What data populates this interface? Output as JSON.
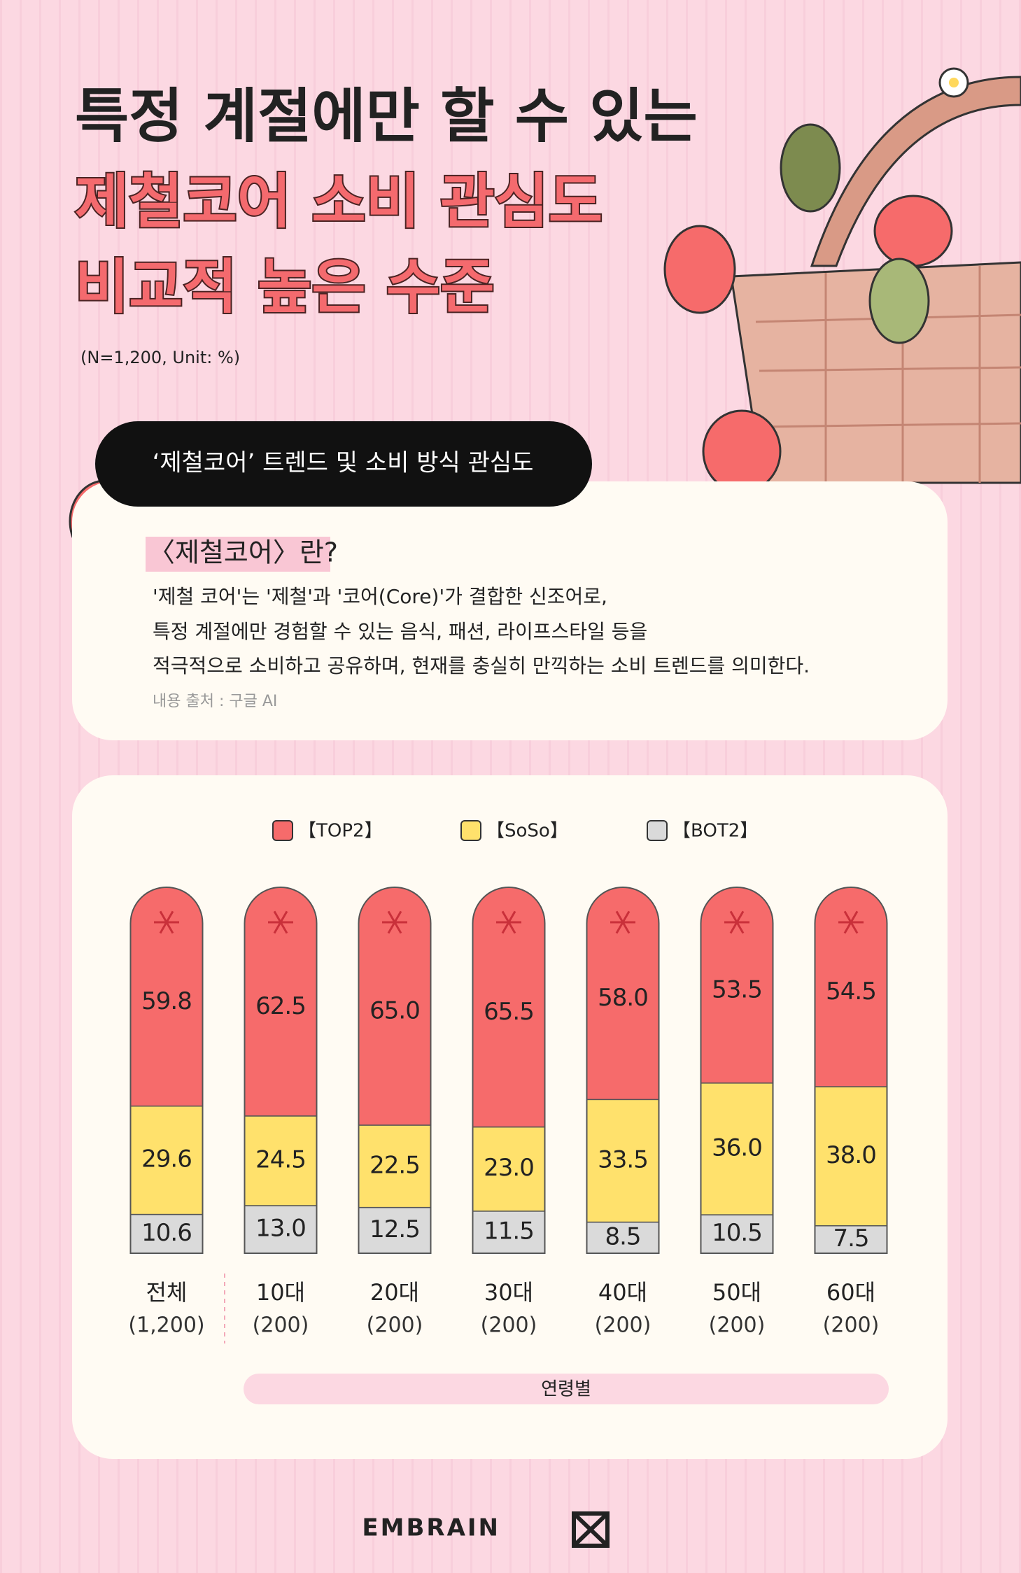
{
  "header": {
    "title_lines": [
      "특정 계절에만 할 수 있는",
      "제철코어 소비 관심도",
      "비교적 높은 수준"
    ],
    "note": "(N=1,200, Unit: %)"
  },
  "section": {
    "title": "‘제철코어’ 트렌드 및 소비 방식 관심도",
    "definition_title": "〈제철코어〉란?",
    "definition_lines": [
      "'제철 코어'는 '제철'과 '코어(Core)'가 결합한 신조어로,",
      "특정 계절에만 경험할 수 있는 음식, 패션, 라이프스타일 등을",
      "적극적으로 소비하고 공유하며, 현재를 충실히 만끽하는 소비 트렌드를 의미한다."
    ],
    "source": "내용 출처 : 구글 AI"
  },
  "chart_data": {
    "type": "stacked_bar",
    "categories": [
      "전체",
      "10대",
      "20대",
      "30대",
      "40대",
      "50대",
      "60대"
    ],
    "sample_sizes": [
      "(1,200)",
      "(200)",
      "(200)",
      "(200)",
      "(200)",
      "(200)",
      "(200)"
    ],
    "x_label": "연령별",
    "series": [
      {
        "name": "【TOP2】",
        "color": "#f66b6b",
        "values": [
          59.8,
          62.5,
          65.0,
          65.5,
          58.0,
          53.5,
          54.5
        ],
        "value_labels": [
          "59.8",
          "62.5",
          "65.0",
          "65.5",
          "58.0",
          "53.5",
          "54.5"
        ]
      },
      {
        "name": "【SoSo】",
        "color": "#ffe16c",
        "values": [
          29.6,
          24.5,
          22.5,
          23.0,
          33.5,
          36.0,
          38.0
        ],
        "value_labels": [
          "29.6",
          "24.5",
          "22.5",
          "23.0",
          "33.5",
          "36.0",
          "38.0"
        ]
      },
      {
        "name": "【BOT2】",
        "color": "#dadada",
        "values": [
          10.6,
          13.0,
          12.5,
          11.5,
          8.5,
          10.5,
          7.5
        ],
        "value_labels": [
          "10.6",
          "13.0",
          "12.5",
          "11.5",
          "8.5",
          "10.5",
          "7.5"
        ]
      }
    ]
  },
  "footer": {
    "brand": "EMBRAIN"
  }
}
